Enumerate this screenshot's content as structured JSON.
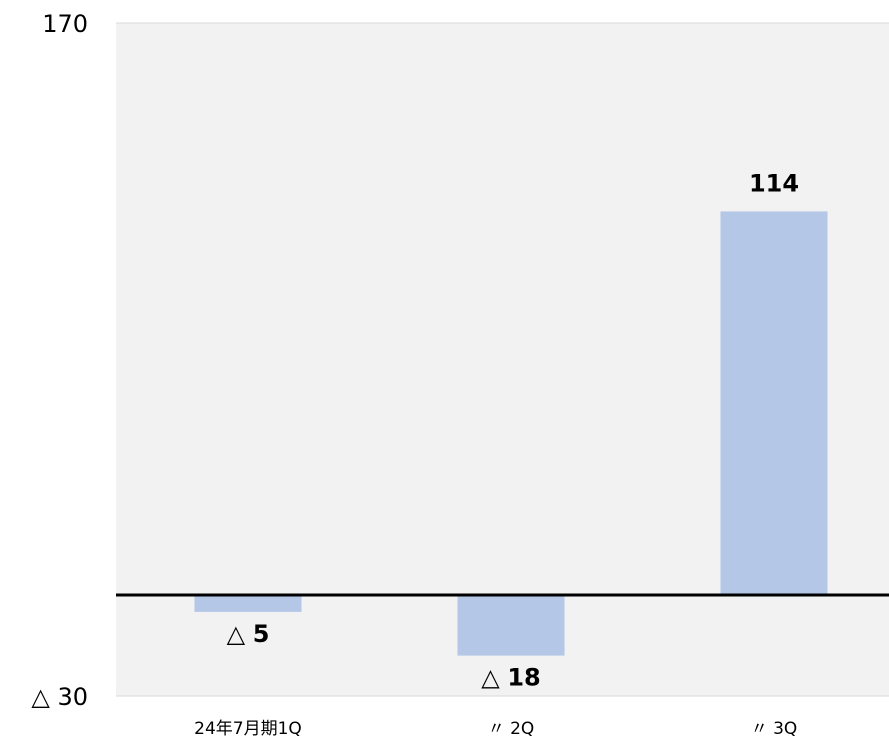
{
  "chart_data": {
    "type": "bar",
    "categories": [
      "24年7月期1Q",
      "〃 2Q",
      "〃 3Q"
    ],
    "values": [
      -5,
      -18,
      114
    ],
    "data_labels": [
      {
        "prefix": "△",
        "number": "5"
      },
      {
        "prefix": "△",
        "number": "18"
      },
      {
        "prefix": "",
        "number": "114"
      }
    ],
    "ylim": [
      -30,
      170
    ],
    "y_tick_labels": [
      "170",
      "△ 30"
    ],
    "colors": {
      "bar": "#b4c7e7",
      "plot_background": "#f2f2f2",
      "zero_line": "#000000"
    },
    "grid": false,
    "legend": "none"
  }
}
